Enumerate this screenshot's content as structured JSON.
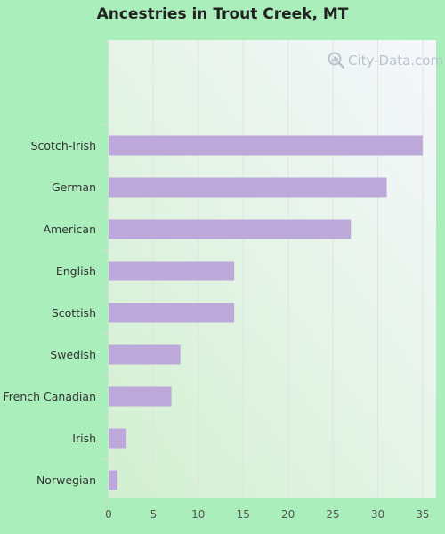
{
  "title": "Ancestries in Trout Creek, MT",
  "watermark": {
    "text": "City-Data.com",
    "icon": "magnifier-icon"
  },
  "colors": {
    "page_background": "#aaeebb",
    "plot_background_start": "#d2f0d0",
    "plot_background_end": "#f6f7fd",
    "bar": "#bca8d9",
    "grid": "#dfe4e0",
    "tick_text": "#555555",
    "label_text": "#333333"
  },
  "chart_data": {
    "type": "bar",
    "orientation": "horizontal",
    "title": "Ancestries in Trout Creek, MT",
    "categories": [
      "Scotch-Irish",
      "German",
      "American",
      "English",
      "Scottish",
      "Swedish",
      "French Canadian",
      "Irish",
      "Norwegian"
    ],
    "values": [
      35,
      31,
      27,
      14,
      14,
      8,
      7,
      2,
      1
    ],
    "xlim": [
      0,
      36.5
    ],
    "xticks": [
      0,
      5,
      10,
      15,
      20,
      25,
      30,
      35
    ],
    "empty_slots_at_top": 2,
    "grid": true,
    "xlabel": "",
    "ylabel": ""
  }
}
